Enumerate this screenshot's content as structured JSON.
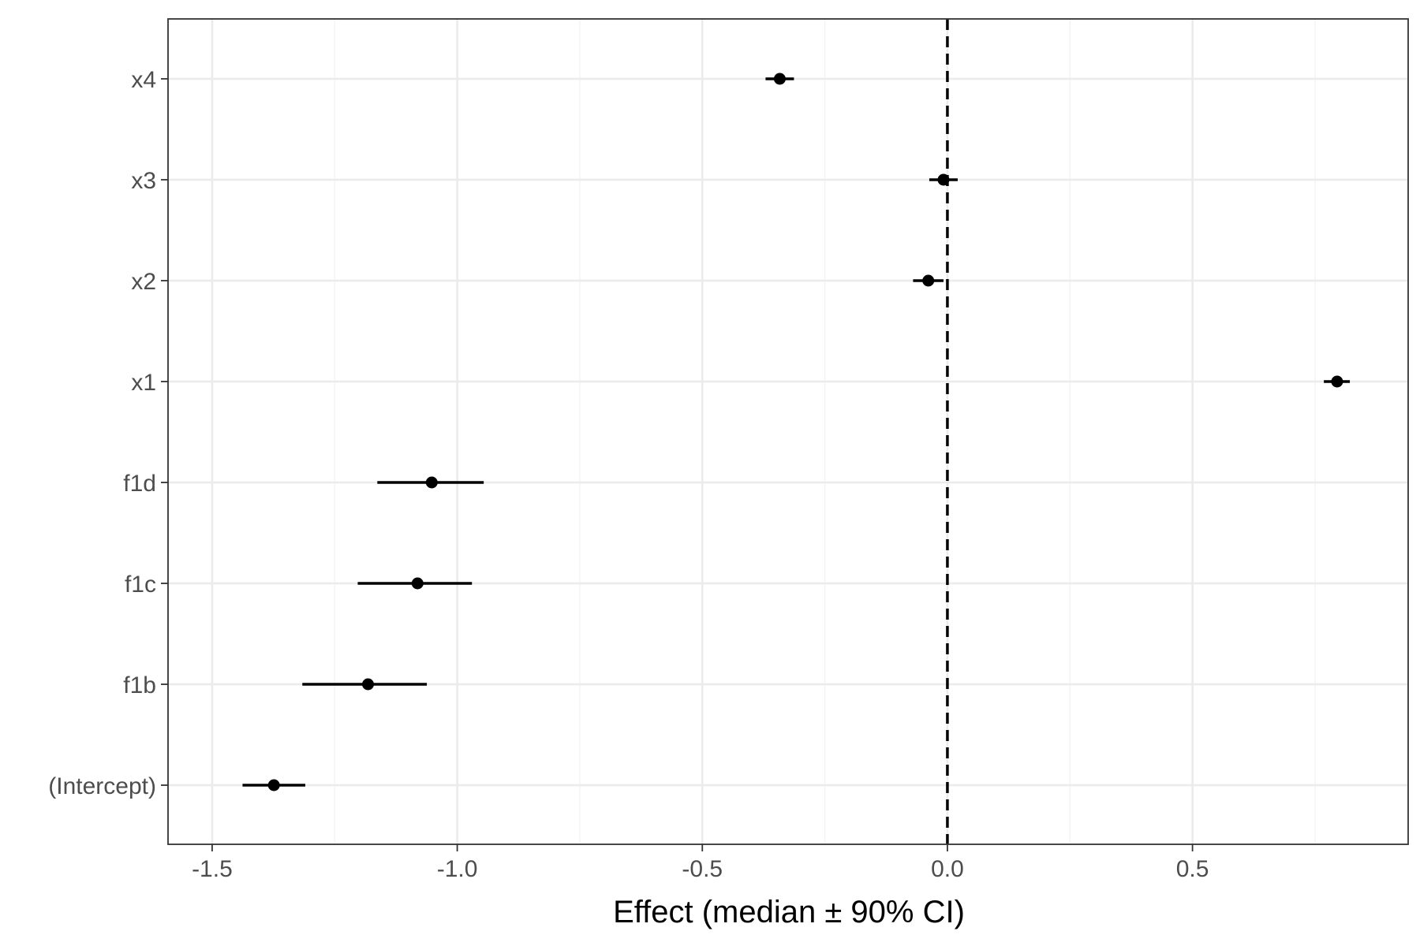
{
  "chart_data": {
    "type": "forest",
    "xlabel": "Effect (median ± 90% CI)",
    "ylabel": "",
    "xlim": [
      -1.59,
      0.94
    ],
    "x_ticks": [
      -1.5,
      -1.0,
      -0.5,
      0.0,
      0.5
    ],
    "x_tick_labels": [
      "-1.5",
      "-1.0",
      "-0.5",
      "0.0",
      "0.5"
    ],
    "reference_line": {
      "x": 0,
      "style": "dashed"
    },
    "grid": true,
    "terms": [
      {
        "label": "x4",
        "median": -0.342,
        "lower": -0.371,
        "upper": -0.313
      },
      {
        "label": "x3",
        "median": -0.008,
        "lower": -0.037,
        "upper": 0.021
      },
      {
        "label": "x2",
        "median": -0.039,
        "lower": -0.07,
        "upper": -0.008
      },
      {
        "label": "x1",
        "median": 0.795,
        "lower": 0.768,
        "upper": 0.821
      },
      {
        "label": "f1d",
        "median": -1.052,
        "lower": -1.163,
        "upper": -0.946
      },
      {
        "label": "f1c",
        "median": -1.081,
        "lower": -1.203,
        "upper": -0.97
      },
      {
        "label": "f1b",
        "median": -1.182,
        "lower": -1.316,
        "upper": -1.062
      },
      {
        "label": "(Intercept)",
        "median": -1.374,
        "lower": -1.438,
        "upper": -1.31
      }
    ],
    "colors": {
      "point": "#000000",
      "interval": "#000000",
      "grid_major": "#ebebeb",
      "grid_minor": "#f3f3f3",
      "panel_border": "#333333"
    }
  }
}
